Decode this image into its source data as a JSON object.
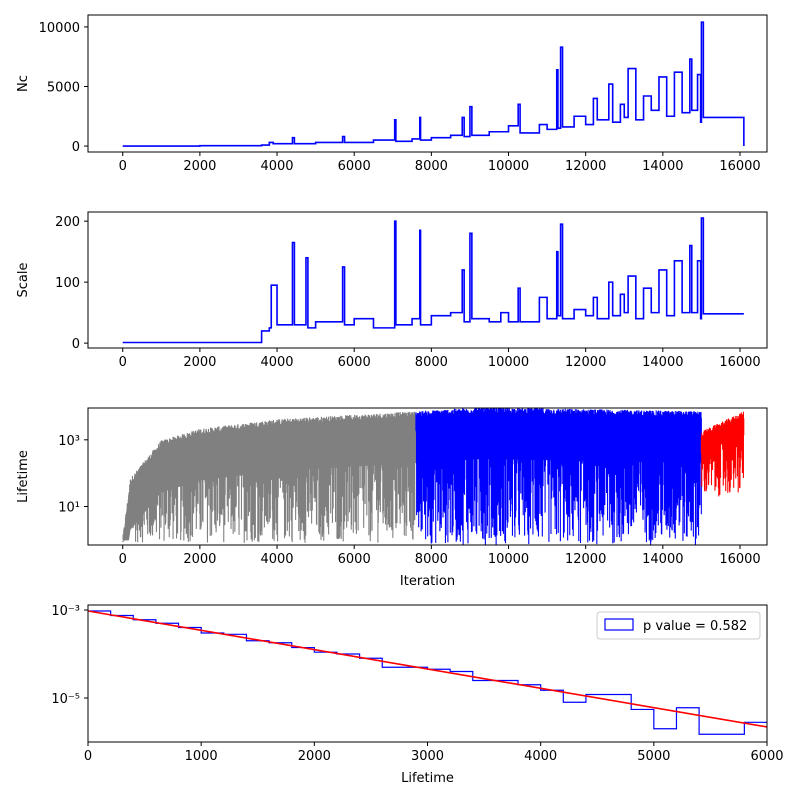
{
  "colors": {
    "nc": "#0000ff",
    "scale": "#0000ff",
    "lifetime_burnin": "#808080",
    "lifetime_main": "#0000ff",
    "lifetime_tail": "#ff0000",
    "hist": "#0000ff",
    "fit": "#ff0000"
  },
  "chart_data": [
    {
      "type": "line",
      "ylabel": "Nc",
      "xlabel": "",
      "xlim": [
        -900,
        16700
      ],
      "ylim": [
        -500,
        11000
      ],
      "xticks": [
        0,
        2000,
        4000,
        6000,
        8000,
        10000,
        12000,
        14000,
        16000
      ],
      "xtick_labels": [
        "0",
        "2000",
        "4000",
        "6000",
        "8000",
        "10000",
        "12000",
        "14000",
        "16000"
      ],
      "yticks": [
        0,
        5000,
        10000
      ],
      "ytick_labels": [
        "0",
        "5000",
        "10000"
      ],
      "series": [
        {
          "color_key": "nc",
          "x": [
            0,
            2000,
            3600,
            3800,
            3900,
            4400,
            4450,
            5000,
            5700,
            5750,
            6500,
            7050,
            7080,
            7500,
            7700,
            7720,
            8000,
            8500,
            8800,
            8850,
            9000,
            9050,
            9500,
            10000,
            10250,
            10300,
            10800,
            11000,
            11250,
            11280,
            11350,
            11400,
            11700,
            12000,
            12200,
            12300,
            12600,
            12700,
            12900,
            13000,
            13100,
            13300,
            13500,
            13700,
            13900,
            14100,
            14300,
            14500,
            14700,
            14750,
            14900,
            14980,
            15000,
            15050,
            16100
          ],
          "y": [
            0,
            30,
            80,
            300,
            200,
            700,
            200,
            300,
            800,
            300,
            500,
            2200,
            400,
            600,
            2400,
            500,
            700,
            900,
            2400,
            800,
            3300,
            900,
            1200,
            1700,
            3500,
            1100,
            1800,
            1400,
            6400,
            1500,
            8300,
            1600,
            2500,
            1800,
            4000,
            2200,
            5200,
            2000,
            3500,
            2400,
            6500,
            2200,
            4200,
            3000,
            5800,
            2500,
            6200,
            2800,
            7300,
            3000,
            6000,
            2000,
            10400,
            2400,
            0
          ]
        }
      ]
    },
    {
      "type": "line",
      "ylabel": "Scale",
      "xlabel": "",
      "xlim": [
        -900,
        16700
      ],
      "ylim": [
        -8,
        215
      ],
      "xticks": [
        0,
        2000,
        4000,
        6000,
        8000,
        10000,
        12000,
        14000,
        16000
      ],
      "xtick_labels": [
        "0",
        "2000",
        "4000",
        "6000",
        "8000",
        "10000",
        "12000",
        "14000",
        "16000"
      ],
      "yticks": [
        0,
        100,
        200
      ],
      "ytick_labels": [
        "0",
        "100",
        "200"
      ],
      "series": [
        {
          "color_key": "scale",
          "x": [
            0,
            3550,
            3600,
            3800,
            3850,
            4000,
            4400,
            4450,
            4750,
            4800,
            5000,
            5700,
            5750,
            6000,
            6500,
            7050,
            7080,
            7500,
            7700,
            7720,
            8000,
            8500,
            8800,
            8850,
            9000,
            9050,
            9500,
            9800,
            10000,
            10250,
            10300,
            10800,
            11000,
            11250,
            11280,
            11350,
            11400,
            11700,
            12000,
            12200,
            12300,
            12600,
            12700,
            12900,
            13000,
            13100,
            13300,
            13500,
            13700,
            13900,
            14100,
            14300,
            14500,
            14700,
            14750,
            14900,
            14980,
            15000,
            15050,
            16100
          ],
          "y": [
            1,
            1,
            20,
            25,
            95,
            30,
            165,
            30,
            140,
            25,
            35,
            125,
            30,
            40,
            25,
            200,
            30,
            40,
            185,
            30,
            45,
            50,
            120,
            35,
            180,
            40,
            35,
            50,
            35,
            90,
            35,
            75,
            40,
            150,
            45,
            195,
            40,
            55,
            45,
            75,
            40,
            100,
            45,
            80,
            50,
            110,
            40,
            90,
            50,
            120,
            45,
            135,
            50,
            160,
            50,
            135,
            40,
            205,
            48,
            48
          ]
        }
      ]
    },
    {
      "type": "line",
      "ylabel": "Lifetime",
      "xlabel": "Iteration",
      "yscale": "log",
      "xlim": [
        -900,
        16700
      ],
      "ylim": [
        0.7,
        9000
      ],
      "xticks": [
        0,
        2000,
        4000,
        6000,
        8000,
        10000,
        12000,
        14000,
        16000
      ],
      "xtick_labels": [
        "0",
        "2000",
        "4000",
        "6000",
        "8000",
        "10000",
        "12000",
        "14000",
        "16000"
      ],
      "yticks": [
        10,
        1000
      ],
      "ytick_labels": [
        "10¹",
        "10³"
      ],
      "bands": [
        {
          "color_key": "lifetime_burnin",
          "x_range": [
            0,
            7600
          ],
          "upper_envelope": [
            [
              0,
              1
            ],
            [
              200,
              60
            ],
            [
              1000,
              800
            ],
            [
              2000,
              1800
            ],
            [
              4000,
              3500
            ],
            [
              7600,
              6000
            ]
          ],
          "lower_extent": 0.8
        },
        {
          "color_key": "lifetime_main",
          "x_range": [
            7600,
            15000
          ],
          "upper_envelope": [
            [
              7600,
              6000
            ],
            [
              9300,
              8000
            ],
            [
              15000,
              6000
            ]
          ],
          "lower_extent": 0.7
        },
        {
          "color_key": "lifetime_tail",
          "x_range": [
            15000,
            16100
          ],
          "upper_envelope": [
            [
              15000,
              1500
            ],
            [
              16100,
              6000
            ]
          ],
          "lower_extent": 20
        }
      ]
    },
    {
      "type": "histogram",
      "ylabel": "",
      "xlabel": "Lifetime",
      "yscale": "log",
      "xlim": [
        0,
        6000
      ],
      "ylim": [
        1e-06,
        0.0013
      ],
      "xticks": [
        0,
        1000,
        2000,
        3000,
        4000,
        5000,
        6000
      ],
      "xtick_labels": [
        "0",
        "1000",
        "2000",
        "3000",
        "4000",
        "5000",
        "6000"
      ],
      "yticks": [
        1e-05,
        0.001
      ],
      "ytick_labels": [
        "10⁻⁵",
        "10⁻³"
      ],
      "legend": {
        "label": "p value = 0.582",
        "placement": "upper right"
      },
      "bin_edges": [
        0,
        200,
        400,
        600,
        800,
        1000,
        1200,
        1400,
        1600,
        1800,
        2000,
        2200,
        2400,
        2600,
        2800,
        3000,
        3200,
        3400,
        3600,
        3800,
        4000,
        4200,
        4400,
        4600,
        4800,
        5000,
        5200,
        5400,
        5600,
        5800,
        6000
      ],
      "counts": [
        0.00095,
        0.00075,
        0.0006,
        0.0005,
        0.0004,
        0.0003,
        0.00028,
        0.0002,
        0.00018,
        0.00014,
        0.00011,
        0.0001,
        8e-05,
        5e-05,
        5e-05,
        4.5e-05,
        4e-05,
        2.5e-05,
        2.5e-05,
        2e-05,
        1.5e-05,
        8e-06,
        1.2e-05,
        1.2e-05,
        5.5e-06,
        2e-06,
        6e-06,
        1.5e-06,
        1.5e-06,
        2.8e-06
      ],
      "fit_line": {
        "x": [
          0,
          6000
        ],
        "y": [
          0.00095,
          2.2e-06
        ]
      }
    }
  ]
}
